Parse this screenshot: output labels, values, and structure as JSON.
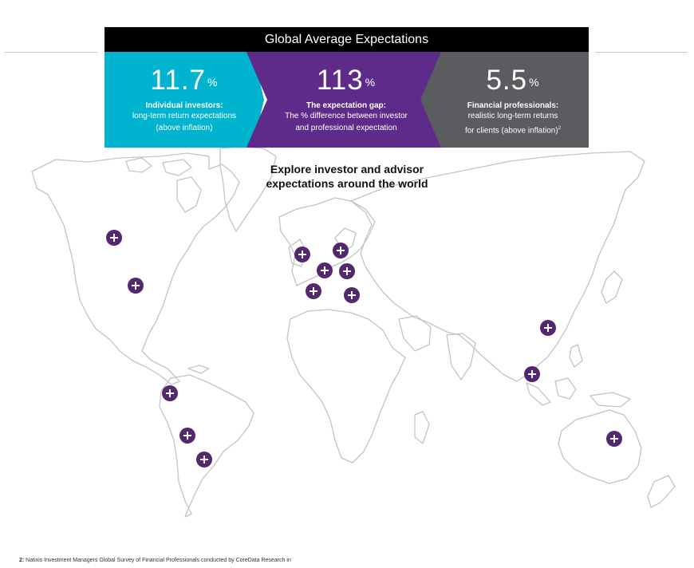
{
  "panel": {
    "title": "Global Average Expectations",
    "colors": {
      "cyan": "#00b3cf",
      "purple": "#5f2b8a",
      "gray": "#5a5c5f",
      "header": "#000000"
    },
    "stats": [
      {
        "value": "11.7",
        "unit": "%",
        "label": "Individual investors:",
        "desc1": "long-term return expectations",
        "desc2": "(above inflation)",
        "sup": ""
      },
      {
        "value": "113",
        "unit": "%",
        "label": "The expectation gap:",
        "desc1": "The % difference between investor",
        "desc2": "and professional expectation",
        "sup": ""
      },
      {
        "value": "5.5",
        "unit": "%",
        "label": "Financial professionals:",
        "desc1": "realistic long-term returns",
        "desc2": "for clients (above inflation)",
        "sup": "2"
      }
    ]
  },
  "map": {
    "explore_line1": "Explore investor and advisor",
    "explore_line2": "expectations around the world",
    "marker_icon": "plus-icon",
    "marker_color": "#54286e"
  },
  "footnote": {
    "ref": "2:",
    "text": " Natixis Investment Managers Global Survey of Financial Professionals conducted by CoreData Research in"
  }
}
